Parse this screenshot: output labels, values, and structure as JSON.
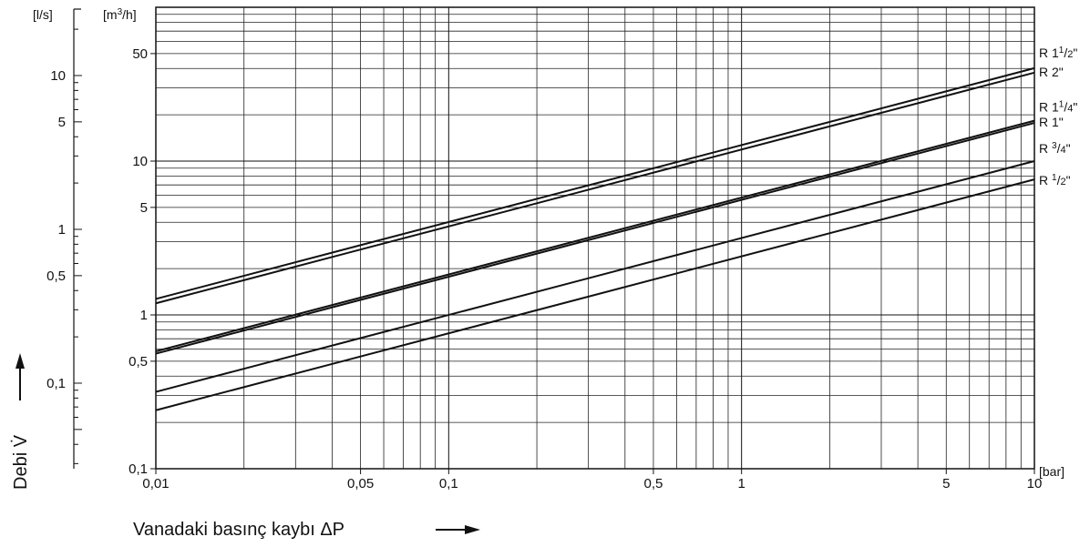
{
  "chart_data": {
    "type": "line",
    "x_scale": "log",
    "y_scale": "log",
    "grid": true,
    "xlim": [
      0.01,
      10
    ],
    "ylim": [
      0.1,
      100
    ],
    "x_ticks": [
      {
        "value": 0.01,
        "label": "0,01"
      },
      {
        "value": 0.05,
        "label": "0,05"
      },
      {
        "value": 0.1,
        "label": "0,1"
      },
      {
        "value": 0.5,
        "label": "0,5"
      },
      {
        "value": 1,
        "label": "1"
      },
      {
        "value": 5,
        "label": "5"
      },
      {
        "value": 10,
        "label": "10"
      }
    ],
    "y_ticks": [
      {
        "value": 0.1,
        "label": "0,1"
      },
      {
        "value": 0.5,
        "label": "0,5"
      },
      {
        "value": 1,
        "label": "1"
      },
      {
        "value": 5,
        "label": "5"
      },
      {
        "value": 10,
        "label": "10"
      },
      {
        "value": 50,
        "label": "50"
      }
    ],
    "y2_ticks": [
      {
        "value": 0.1,
        "label": "0,1"
      },
      {
        "value": 0.5,
        "label": "0,5"
      },
      {
        "value": 1,
        "label": "1"
      },
      {
        "value": 5,
        "label": "5"
      },
      {
        "value": 10,
        "label": "10"
      }
    ],
    "x_unit": "[bar]",
    "y_unit": "[m3/h]",
    "y2_unit": "[l/s]",
    "xlabel": "Vanadaki basınç kaybı  ΔP",
    "ylabel": "Debi V̇",
    "series": [
      {
        "name": "R 1½\"",
        "label_main": "R 1",
        "label_sup": "1",
        "label_sub": "2",
        "label_end": "\"",
        "x": [
          0.01,
          10
        ],
        "y": [
          1.27,
          40.2
        ]
      },
      {
        "name": "R 2\"",
        "label_main": "R 2\"",
        "x": [
          0.01,
          10
        ],
        "y": [
          1.19,
          37.6
        ]
      },
      {
        "name": "R 1¼\"",
        "label_main": "R 1",
        "label_sup": "1",
        "label_sub": "4",
        "label_end": "\"",
        "x": [
          0.01,
          10
        ],
        "y": [
          0.58,
          18.3
        ]
      },
      {
        "name": "R 1\"",
        "label_main": "R 1\"",
        "x": [
          0.01,
          10
        ],
        "y": [
          0.56,
          17.7
        ]
      },
      {
        "name": "R ¾\"",
        "label_main": "R ",
        "label_sup": "3",
        "label_sub": "4",
        "label_end": "\"",
        "x": [
          0.01,
          10
        ],
        "y": [
          0.316,
          10.0
        ]
      },
      {
        "name": "R ½\"",
        "label_main": "R ",
        "label_sup": "1",
        "label_sub": "2",
        "label_end": "\"",
        "x": [
          0.01,
          10
        ],
        "y": [
          0.24,
          7.6
        ]
      }
    ],
    "annotations": {
      "y_unit_main": "[m",
      "y_unit_sup": "3",
      "y_unit_tail": "/h]"
    }
  }
}
